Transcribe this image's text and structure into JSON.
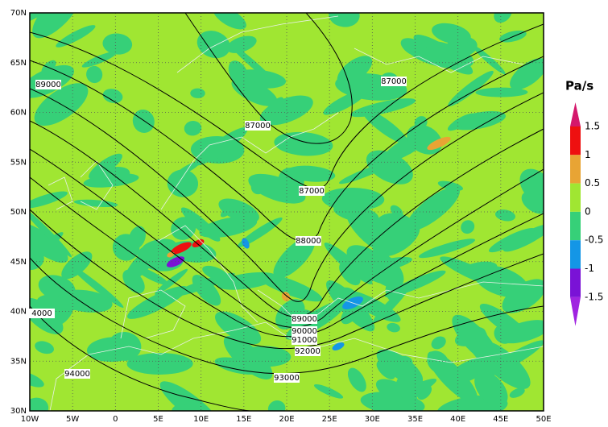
{
  "map": {
    "x_labels": [
      "10W",
      "5W",
      "0",
      "5E",
      "10E",
      "15E",
      "20E",
      "25E",
      "30E",
      "35E",
      "40E",
      "45E",
      "50E"
    ],
    "y_labels": [
      "30N",
      "35N",
      "40N",
      "45N",
      "50N",
      "55N",
      "60N",
      "65N",
      "70N"
    ],
    "contour_labels": [
      89000,
      87000,
      87000,
      87000,
      88000,
      89000,
      90000,
      91000,
      92000,
      93000,
      94000,
      4000
    ],
    "colorbar": {
      "unit": "Pa/s",
      "levels": [
        1.5,
        1,
        0.5,
        0,
        -0.5,
        -1,
        -1.5
      ],
      "colors": [
        "#d4186c",
        "#ee1010",
        "#e8a434",
        "#a0e632",
        "#36d078",
        "#1496e6",
        "#7a12d6",
        "#a024e0"
      ]
    }
  }
}
